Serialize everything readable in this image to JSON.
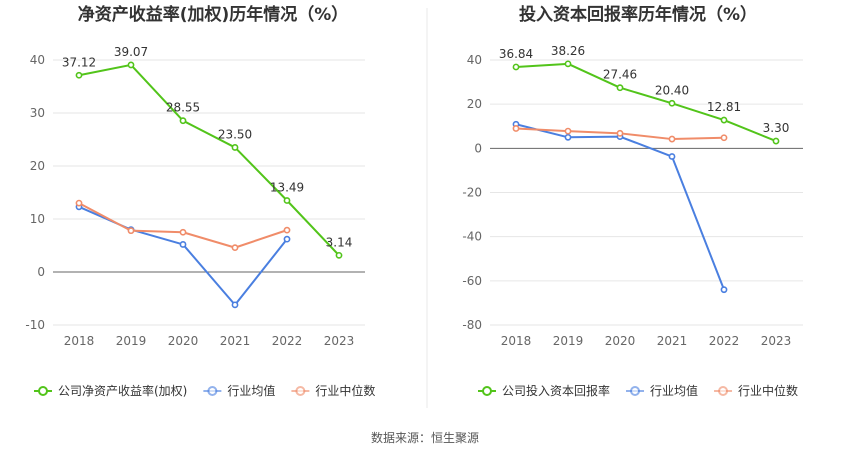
{
  "source": "数据来源：恒生聚源",
  "chart_data": [
    {
      "type": "line",
      "title": "净资产收益率(加权)历年情况（%）",
      "categories": [
        "2018",
        "2019",
        "2020",
        "2021",
        "2022",
        "2023"
      ],
      "ylim": [
        -10,
        40
      ],
      "yticks": [
        "-10",
        "0",
        "10",
        "20",
        "30",
        "40"
      ],
      "grid": true,
      "legend_position": "bottom",
      "series": [
        {
          "name": "公司净资产收益率(加权)",
          "color": "#52c41a",
          "values": [
            37.12,
            39.07,
            28.55,
            23.5,
            13.49,
            3.14
          ],
          "labels": [
            "37.12",
            "39.07",
            "28.55",
            "23.50",
            "13.49",
            "3.14"
          ]
        },
        {
          "name": "行业均值",
          "color": "#4a7fe0",
          "values": [
            12.3,
            8.0,
            5.2,
            -6.2,
            6.2,
            null
          ]
        },
        {
          "name": "行业中位数",
          "color": "#f08c69",
          "values": [
            13.0,
            7.8,
            7.5,
            4.6,
            7.9,
            null
          ]
        }
      ]
    },
    {
      "type": "line",
      "title": "投入资本回报率历年情况（%）",
      "categories": [
        "2018",
        "2019",
        "2020",
        "2021",
        "2022",
        "2023"
      ],
      "ylim": [
        -80,
        40
      ],
      "yticks": [
        "-80",
        "-60",
        "-40",
        "-20",
        "0",
        "20",
        "40"
      ],
      "grid": true,
      "legend_position": "bottom",
      "series": [
        {
          "name": "公司投入资本回报率",
          "color": "#52c41a",
          "values": [
            36.84,
            38.26,
            27.46,
            20.4,
            12.81,
            3.3
          ],
          "labels": [
            "36.84",
            "38.26",
            "27.46",
            "20.40",
            "12.81",
            "3.30"
          ]
        },
        {
          "name": "行业均值",
          "color": "#4a7fe0",
          "values": [
            10.9,
            5.0,
            5.3,
            -3.7,
            -64.0,
            null
          ]
        },
        {
          "name": "行业中位数",
          "color": "#f08c69",
          "values": [
            9.0,
            7.8,
            6.8,
            4.2,
            4.8,
            null
          ]
        }
      ]
    }
  ]
}
